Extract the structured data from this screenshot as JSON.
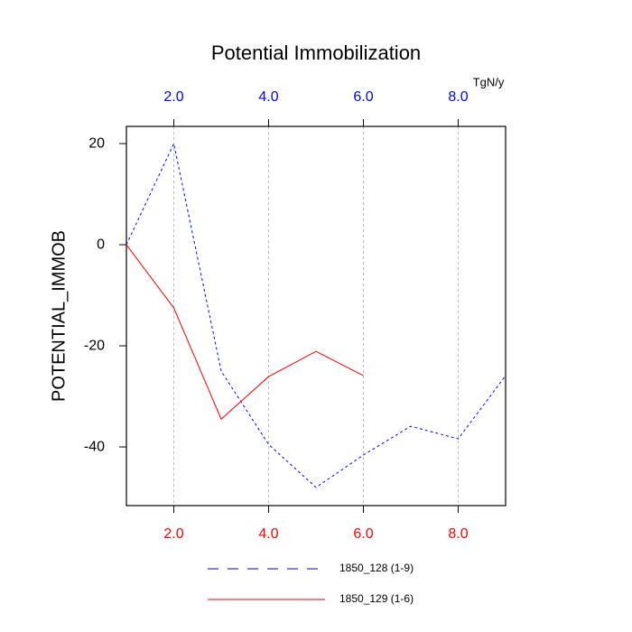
{
  "chart_data": {
    "type": "line",
    "title": "Potential Immobilization",
    "ylabel": "POTENTIAL_IMMOB",
    "units": "TgN/y",
    "xlim": [
      1,
      9
    ],
    "ylim": [
      -51.6,
      23.4
    ],
    "xticks": [
      {
        "value": 2,
        "label": "2.0"
      },
      {
        "value": 4,
        "label": "4.0"
      },
      {
        "value": 6,
        "label": "6.0"
      },
      {
        "value": 8,
        "label": "8.0"
      }
    ],
    "xtick_color": "#ff0000",
    "x2ticks": [
      {
        "value": 2,
        "label": "2.0"
      },
      {
        "value": 4,
        "label": "4.0"
      },
      {
        "value": 6,
        "label": "6.0"
      },
      {
        "value": 8,
        "label": "8.0"
      }
    ],
    "x2tick_color": "#0000ff",
    "yticks": [
      20,
      0,
      -20,
      -40
    ],
    "grid": "x",
    "series": [
      {
        "name": "1850_128 (1-9)",
        "color": "#0000ff",
        "dash": "dashed",
        "x": [
          1,
          2,
          3,
          4,
          5,
          6,
          7,
          8,
          9
        ],
        "values": [
          0,
          20,
          -25,
          -39.5,
          -48,
          -41.6,
          -35.9,
          -38.4,
          -25.9
        ]
      },
      {
        "name": "1850_129 (1-6)",
        "color": "#ff0000",
        "dash": "solid",
        "x": [
          1,
          2,
          3,
          4,
          5,
          6
        ],
        "values": [
          0,
          -12.5,
          -34.5,
          -26.1,
          -21.1,
          -25.9
        ]
      }
    ]
  }
}
